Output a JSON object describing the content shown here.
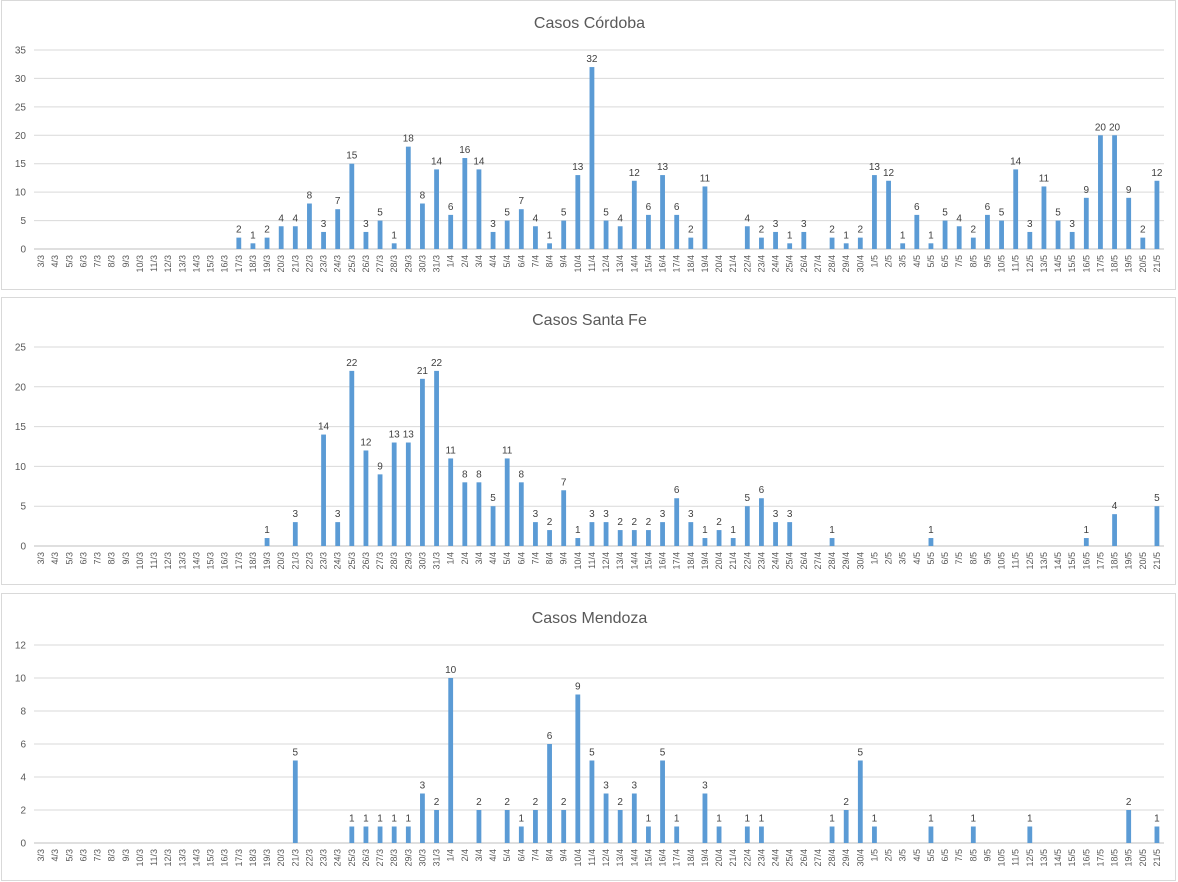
{
  "chart_data": [
    {
      "type": "bar",
      "title": "Casos Córdoba",
      "ylim": [
        0,
        35
      ],
      "yticks": [
        0,
        5,
        10,
        15,
        20,
        25,
        30,
        35
      ],
      "grid": true,
      "bar_color": "#5b9bd5",
      "categories": [
        "3/3",
        "4/3",
        "5/3",
        "6/3",
        "7/3",
        "8/3",
        "9/3",
        "10/3",
        "11/3",
        "12/3",
        "13/3",
        "14/3",
        "15/3",
        "16/3",
        "17/3",
        "18/3",
        "19/3",
        "20/3",
        "21/3",
        "22/3",
        "23/3",
        "24/3",
        "25/3",
        "26/3",
        "27/3",
        "28/3",
        "29/3",
        "30/3",
        "31/3",
        "1/4",
        "2/4",
        "3/4",
        "4/4",
        "5/4",
        "6/4",
        "7/4",
        "8/4",
        "9/4",
        "10/4",
        "11/4",
        "12/4",
        "13/4",
        "14/4",
        "15/4",
        "16/4",
        "17/4",
        "18/4",
        "19/4",
        "20/4",
        "21/4",
        "22/4",
        "23/4",
        "24/4",
        "25/4",
        "26/4",
        "27/4",
        "28/4",
        "29/4",
        "30/4",
        "1/5",
        "2/5",
        "3/5",
        "4/5",
        "5/5",
        "6/5",
        "7/5",
        "8/5",
        "9/5",
        "10/5",
        "11/5",
        "12/5",
        "13/5",
        "14/5",
        "15/5",
        "16/5",
        "17/5",
        "18/5",
        "19/5",
        "20/5",
        "21/5"
      ],
      "values": [
        0,
        0,
        0,
        0,
        0,
        0,
        0,
        0,
        0,
        0,
        0,
        0,
        0,
        0,
        2,
        1,
        2,
        4,
        4,
        8,
        3,
        7,
        15,
        3,
        5,
        1,
        18,
        8,
        14,
        6,
        16,
        14,
        3,
        5,
        7,
        4,
        1,
        5,
        13,
        32,
        5,
        4,
        12,
        6,
        13,
        6,
        2,
        11,
        0,
        0,
        4,
        2,
        3,
        1,
        3,
        0,
        2,
        1,
        2,
        13,
        12,
        1,
        6,
        1,
        5,
        4,
        2,
        6,
        5,
        14,
        3,
        11,
        5,
        3,
        9,
        20,
        20,
        9,
        2,
        12
      ]
    },
    {
      "type": "bar",
      "title": "Casos Santa Fe",
      "ylim": [
        0,
        25
      ],
      "yticks": [
        0,
        5,
        10,
        15,
        20,
        25
      ],
      "grid": true,
      "bar_color": "#5b9bd5",
      "categories": [
        "3/3",
        "4/3",
        "5/3",
        "6/3",
        "7/3",
        "8/3",
        "9/3",
        "10/3",
        "11/3",
        "12/3",
        "13/3",
        "14/3",
        "15/3",
        "16/3",
        "17/3",
        "18/3",
        "19/3",
        "20/3",
        "21/3",
        "22/3",
        "23/3",
        "24/3",
        "25/3",
        "26/3",
        "27/3",
        "28/3",
        "29/3",
        "30/3",
        "31/3",
        "1/4",
        "2/4",
        "3/4",
        "4/4",
        "5/4",
        "6/4",
        "7/4",
        "8/4",
        "9/4",
        "10/4",
        "11/4",
        "12/4",
        "13/4",
        "14/4",
        "15/4",
        "16/4",
        "17/4",
        "18/4",
        "19/4",
        "20/4",
        "21/4",
        "22/4",
        "23/4",
        "24/4",
        "25/4",
        "26/4",
        "27/4",
        "28/4",
        "29/4",
        "30/4",
        "1/5",
        "2/5",
        "3/5",
        "4/5",
        "5/5",
        "6/5",
        "7/5",
        "8/5",
        "9/5",
        "10/5",
        "11/5",
        "12/5",
        "13/5",
        "14/5",
        "15/5",
        "16/5",
        "17/5",
        "18/5",
        "19/5",
        "20/5",
        "21/5"
      ],
      "values": [
        0,
        0,
        0,
        0,
        0,
        0,
        0,
        0,
        0,
        0,
        0,
        0,
        0,
        0,
        0,
        0,
        1,
        0,
        3,
        0,
        14,
        3,
        22,
        12,
        9,
        13,
        13,
        21,
        22,
        11,
        8,
        8,
        5,
        11,
        8,
        3,
        2,
        7,
        1,
        3,
        3,
        2,
        2,
        2,
        3,
        6,
        3,
        1,
        2,
        1,
        5,
        6,
        3,
        3,
        0,
        0,
        1,
        0,
        0,
        0,
        0,
        0,
        0,
        1,
        0,
        0,
        0,
        0,
        0,
        0,
        0,
        0,
        0,
        0,
        1,
        0,
        4,
        0,
        0,
        5
      ]
    },
    {
      "type": "bar",
      "title": "Casos Mendoza",
      "ylim": [
        0,
        12
      ],
      "yticks": [
        0,
        2,
        4,
        6,
        8,
        10,
        12
      ],
      "grid": true,
      "bar_color": "#5b9bd5",
      "categories": [
        "3/3",
        "4/3",
        "5/3",
        "6/3",
        "7/3",
        "8/3",
        "9/3",
        "10/3",
        "11/3",
        "12/3",
        "13/3",
        "14/3",
        "15/3",
        "16/3",
        "17/3",
        "18/3",
        "19/3",
        "20/3",
        "21/3",
        "22/3",
        "23/3",
        "24/3",
        "25/3",
        "26/3",
        "27/3",
        "28/3",
        "29/3",
        "30/3",
        "31/3",
        "1/4",
        "2/4",
        "3/4",
        "4/4",
        "5/4",
        "6/4",
        "7/4",
        "8/4",
        "9/4",
        "10/4",
        "11/4",
        "12/4",
        "13/4",
        "14/4",
        "15/4",
        "16/4",
        "17/4",
        "18/4",
        "19/4",
        "20/4",
        "21/4",
        "22/4",
        "23/4",
        "24/4",
        "25/4",
        "26/4",
        "27/4",
        "28/4",
        "29/4",
        "30/4",
        "1/5",
        "2/5",
        "3/5",
        "4/5",
        "5/5",
        "6/5",
        "7/5",
        "8/5",
        "9/5",
        "10/5",
        "11/5",
        "12/5",
        "13/5",
        "14/5",
        "15/5",
        "16/5",
        "17/5",
        "18/5",
        "19/5",
        "20/5",
        "21/5"
      ],
      "values": [
        0,
        0,
        0,
        0,
        0,
        0,
        0,
        0,
        0,
        0,
        0,
        0,
        0,
        0,
        0,
        0,
        0,
        0,
        5,
        0,
        0,
        0,
        1,
        1,
        1,
        1,
        1,
        3,
        2,
        10,
        0,
        2,
        0,
        2,
        1,
        2,
        6,
        2,
        9,
        5,
        3,
        2,
        3,
        1,
        5,
        1,
        0,
        3,
        1,
        0,
        1,
        1,
        0,
        0,
        0,
        0,
        1,
        2,
        5,
        1,
        0,
        0,
        0,
        1,
        0,
        0,
        1,
        0,
        0,
        0,
        1,
        0,
        0,
        0,
        0,
        0,
        0,
        2,
        0,
        1
      ]
    }
  ]
}
